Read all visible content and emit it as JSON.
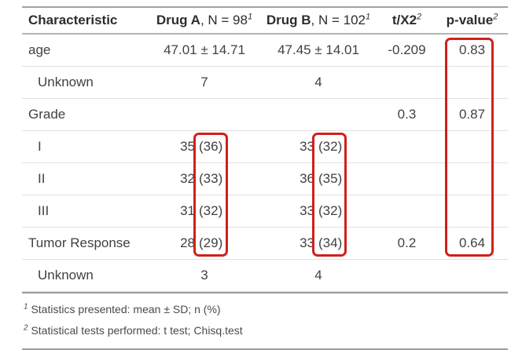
{
  "table": {
    "header": {
      "characteristic": "Characteristic",
      "drug_a_bold": "Drug A",
      "drug_a_rest": ", N = 98",
      "drug_a_sup": "1",
      "drug_b_bold": "Drug B",
      "drug_b_rest": ", N = 102",
      "drug_b_sup": "1",
      "stat_label": "t/X2",
      "stat_sup": "2",
      "p_label": "p-value",
      "p_sup": "2"
    },
    "rows": [
      {
        "label": "age",
        "a_val": "47.01 ± 14.71",
        "b_val": "47.45 ± 14.01",
        "stat": "-0.209",
        "p": "0.83"
      },
      {
        "label": "Unknown",
        "a_val": "7",
        "b_val": "4",
        "stat": "",
        "p": ""
      },
      {
        "label": "Grade",
        "a_val": "",
        "b_val": "",
        "stat": "0.3",
        "p": "0.87"
      },
      {
        "label": "I",
        "a_n": "35",
        "a_pct": "(36)",
        "b_n": "33",
        "b_pct": "(32)",
        "stat": "",
        "p": ""
      },
      {
        "label": "II",
        "a_n": "32",
        "a_pct": "(33)",
        "b_n": "36",
        "b_pct": "(35)",
        "stat": "",
        "p": ""
      },
      {
        "label": "III",
        "a_n": "31",
        "a_pct": "(32)",
        "b_n": "33",
        "b_pct": "(32)",
        "stat": "",
        "p": ""
      },
      {
        "label": "Tumor Response",
        "a_n": "28",
        "a_pct": "(29)",
        "b_n": "33",
        "b_pct": "(34)",
        "stat": "0.2",
        "p": "0.64"
      },
      {
        "label": "Unknown",
        "a_val": "3",
        "b_val": "4",
        "stat": "",
        "p": ""
      }
    ],
    "footnotes": [
      {
        "sup": "1",
        "text": "Statistics presented: mean ± SD; n (%)"
      },
      {
        "sup": "2",
        "text": "Statistical tests performed: t test; Chisq.test"
      }
    ]
  },
  "annotations": {
    "highlight_color": "#d1201b",
    "boxes": [
      "p-value-column-highlight",
      "drug-a-percent-column-highlight",
      "drug-b-percent-column-highlight"
    ]
  }
}
